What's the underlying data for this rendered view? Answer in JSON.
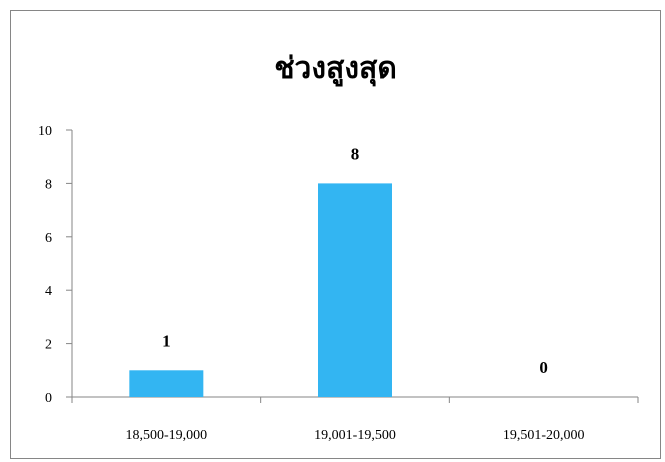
{
  "chart_data": {
    "type": "bar",
    "title": "ช่วงสูงสุด",
    "categories": [
      "18,500-19,000",
      "19,001-19,500",
      "19,501-20,000"
    ],
    "values": [
      1,
      8,
      0
    ],
    "data_labels": [
      "1",
      "8",
      "0"
    ],
    "ylim": [
      0,
      10
    ],
    "yticks": [
      0,
      2,
      4,
      6,
      8,
      10
    ],
    "ytick_labels": [
      "0",
      "2",
      "4",
      "6",
      "8",
      "10"
    ],
    "bar_color": "#33B5F2",
    "grid": false,
    "legend": "none"
  }
}
